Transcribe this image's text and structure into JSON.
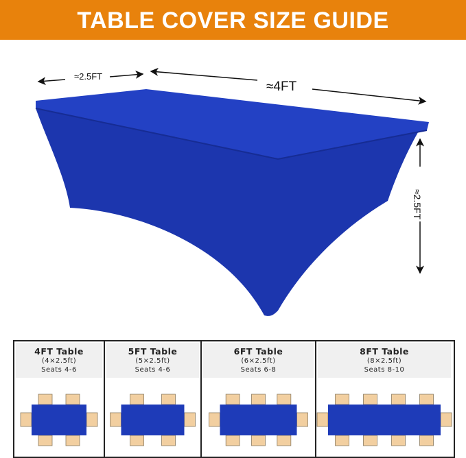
{
  "header": {
    "title": "TABLE COVER SIZE GUIDE"
  },
  "dimensions": {
    "width": "≈2.5FT",
    "length": "≈4FT",
    "height": "≈2.5FT"
  },
  "colors": {
    "accent": "#E8820C",
    "cover": "#1E3BB8",
    "chair": "#F2CFA0"
  },
  "tables": [
    {
      "title": "4FT Table",
      "size": "(4×2.5ft)",
      "seats": "Seats 4-6",
      "chairs_per_side": 2
    },
    {
      "title": "5FT Table",
      "size": "(5×2.5ft)",
      "seats": "Seats 4-6",
      "chairs_per_side": 2
    },
    {
      "title": "6FT Table",
      "size": "(6×2.5ft)",
      "seats": "Seats 6-8",
      "chairs_per_side": 3
    },
    {
      "title": "8FT Table",
      "size": "(8×2.5ft)",
      "seats": "Seats 8-10",
      "chairs_per_side": 4
    }
  ]
}
